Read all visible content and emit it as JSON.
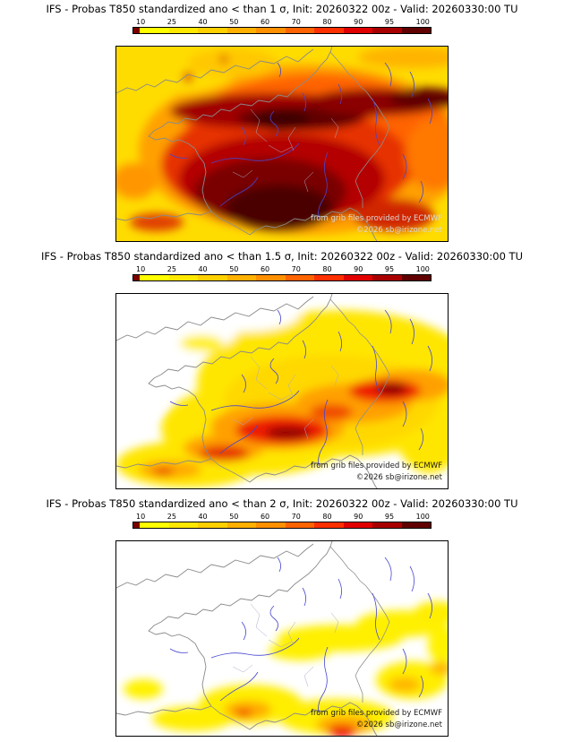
{
  "colorbar": {
    "ticks": [
      "10",
      "25",
      "40",
      "50",
      "60",
      "70",
      "80",
      "90",
      "95",
      "100"
    ],
    "pre_color": "#7a0000",
    "colors": [
      "#ffff00",
      "#ffe800",
      "#ffd000",
      "#ffb000",
      "#ff9000",
      "#ff6400",
      "#ff3000",
      "#e00000",
      "#a80000",
      "#600000"
    ]
  },
  "panels": [
    {
      "title": "IFS - Probas T850  standardized ano < than 1 σ, Init: 20260322 00z - Valid: 20260330:00 TU",
      "watermark": {
        "line1": "from grib files provided by ECMWF",
        "line2": "©2026 sb@irizone.net",
        "color": "#d8d8d8"
      }
    },
    {
      "title": "IFS - Probas T850  standardized ano < than 1.5 σ, Init: 20260322 00z - Valid: 20260330:00 TU",
      "watermark": {
        "line1": "from grib files provided by ECMWF",
        "line2": "©2026 sb@irizone.net",
        "color": "#1a1a1a"
      }
    },
    {
      "title": "IFS - Probas T850  standardized ano < than 2 σ, Init: 20260322 00z - Valid: 20260330:00 TU",
      "watermark": {
        "line1": "from grib files provided by ECMWF",
        "line2": "©2026 sb@irizone.net",
        "color": "#1a1a1a"
      }
    }
  ]
}
